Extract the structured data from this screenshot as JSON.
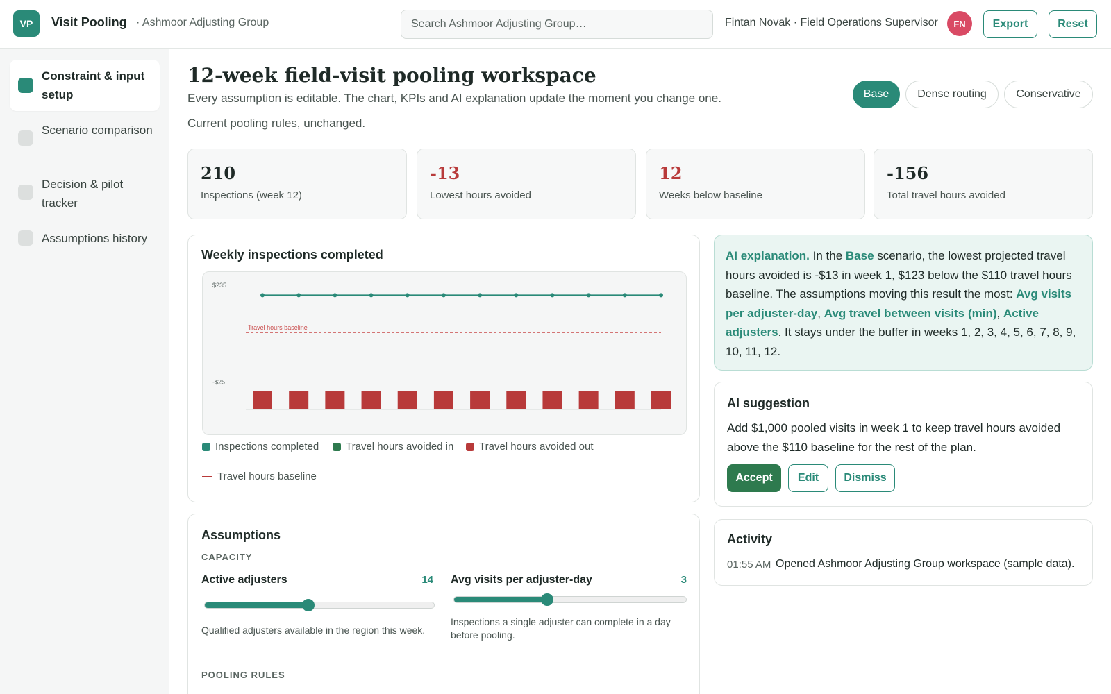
{
  "header": {
    "logo": "VP",
    "app_title": "Visit Pooling",
    "org": "· Ashmoor Adjusting Group",
    "search_placeholder": "Search Ashmoor Adjusting Group…",
    "user": "Fintan Novak · Field Operations Supervisor",
    "avatar_initials": "FN",
    "export_label": "Export",
    "reset_label": "Reset"
  },
  "sidebar": {
    "items": [
      {
        "label": "Constraint & input setup",
        "active": true
      },
      {
        "label": "Scenario comparison",
        "active": false
      },
      {
        "label": "Decision & pilot tracker",
        "active": false
      },
      {
        "label": "Assumptions history",
        "active": false
      }
    ]
  },
  "page": {
    "title": "12-week field-visit pooling workspace",
    "subtitle": "Every assumption is editable. The chart, KPIs and AI explanation update the moment you change one.",
    "status": "Current pooling rules, unchanged.",
    "scenarios": [
      "Base",
      "Dense routing",
      "Conservative"
    ],
    "active_scenario": "Base"
  },
  "kpis": [
    {
      "value": "210",
      "label": "Inspections (week 12)",
      "negative": false
    },
    {
      "value": "-13",
      "label": "Lowest hours avoided",
      "negative": true
    },
    {
      "value": "12",
      "label": "Weeks below baseline",
      "negative": true
    },
    {
      "value": "-156",
      "label": "Total travel hours avoided",
      "negative": false
    }
  ],
  "chart": {
    "title": "Weekly inspections completed",
    "legend": {
      "inspections": "Inspections completed",
      "avoided_in": "Travel hours avoided in",
      "avoided_out": "Travel hours avoided out",
      "baseline": "Travel hours baseline"
    },
    "colors": {
      "line": "#2a8a78",
      "avoided_in": "#2e7a4e",
      "avoided_out": "#b83a3a",
      "baseline": "#c94a4a"
    }
  },
  "chart_data": {
    "type": "bar",
    "x": [
      1,
      2,
      3,
      4,
      5,
      6,
      7,
      8,
      9,
      10,
      11,
      12
    ],
    "y_ticks": [
      "$235",
      "-$25"
    ],
    "series": [
      {
        "name": "Inspections completed",
        "type": "line",
        "values": [
          210,
          210,
          210,
          210,
          210,
          210,
          210,
          210,
          210,
          210,
          210,
          210
        ]
      },
      {
        "name": "Travel hours avoided out",
        "type": "bar",
        "values": [
          -13,
          -13,
          -13,
          -13,
          -13,
          -13,
          -13,
          -13,
          -13,
          -13,
          -13,
          -13
        ]
      }
    ],
    "baseline": {
      "label": "Travel hours baseline",
      "value": 110
    },
    "ylim": [
      -100,
      235
    ]
  },
  "ai_explanation": {
    "prefix": "AI explanation.",
    "t1": " In the ",
    "scenario": "Base",
    "t2": " scenario, the lowest projected travel hours avoided is -$13 in week 1, $123 below the $110 travel hours baseline. The assumptions moving this result the most: ",
    "a1": "Avg visits per adjuster-day",
    "sep1": ", ",
    "a2": "Avg travel between visits (min)",
    "sep2": ", ",
    "a3": "Active adjusters",
    "t3": ". It stays under the buffer in weeks 1, 2, 3, 4, 5, 6, 7, 8, 9, 10, 11, 12."
  },
  "suggestion": {
    "title": "AI suggestion",
    "text": "Add $1,000 pooled visits in week 1 to keep travel hours avoided above the $110 baseline for the rest of the plan.",
    "accept": "Accept",
    "edit": "Edit",
    "dismiss": "Dismiss"
  },
  "activity": {
    "title": "Activity",
    "entries": [
      {
        "time": "01:55 AM",
        "text": "Opened Ashmoor Adjusting Group workspace (sample data)."
      }
    ]
  },
  "assumptions": {
    "title": "Assumptions",
    "capacity_label": "CAPACITY",
    "pooling_label": "POOLING RULES",
    "sliders": [
      {
        "name": "Active adjusters",
        "value": "14",
        "fraction": 0.45,
        "help": "Qualified adjusters available in the region this week."
      },
      {
        "name": "Avg visits per adjuster-day",
        "value": "3",
        "fraction": 0.4,
        "help": "Inspections a single adjuster can complete in a day before pooling."
      }
    ]
  }
}
